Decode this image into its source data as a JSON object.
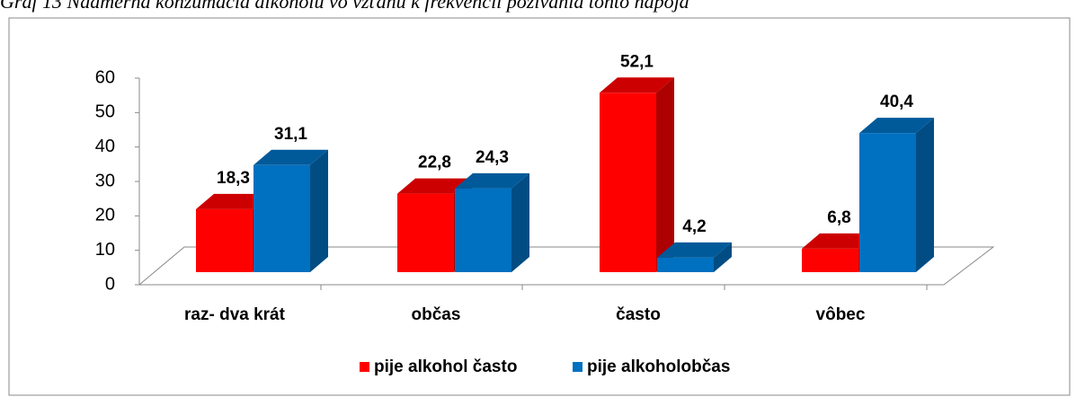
{
  "chart_data": {
    "type": "bar3d",
    "title": "Graf 13 Nadmerná konzumácia alkoholu vo vzťahu k frekvencii požívania tohto nápoja",
    "categories": [
      "raz- dva krát",
      "občas",
      "často",
      "vôbec"
    ],
    "series": [
      {
        "name": "pije alkohol často",
        "color": "#ff0000",
        "values": [
          18.3,
          22.8,
          52.1,
          6.8
        ],
        "value_labels": [
          "18,3",
          "22,8",
          "52,1",
          "6,8"
        ]
      },
      {
        "name": "pije alkoholobčas",
        "color": "#0070c0",
        "values": [
          31.1,
          24.3,
          4.2,
          40.4
        ],
        "value_labels": [
          "31,1",
          "24,3",
          "4,2",
          "40,4"
        ]
      }
    ],
    "ylim": [
      0,
      60
    ],
    "yticks": [
      0,
      10,
      20,
      30,
      40,
      50,
      60
    ],
    "legend": "bottom"
  }
}
